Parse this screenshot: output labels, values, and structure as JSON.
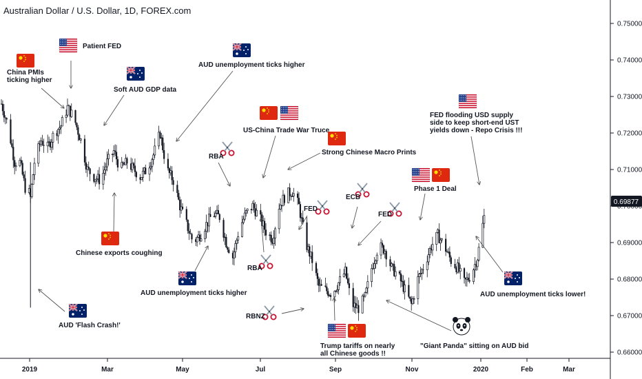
{
  "window": {
    "title": "Australian Dollar / U.S. Dollar, 1D, FOREX.com"
  },
  "colors": {
    "candle": "#131722",
    "arrow": "#555555",
    "axis_line": "#131722",
    "price_tag_bg": "#131722",
    "price_tag_text": "#ffffff"
  },
  "chart_data": {
    "type": "candlestick",
    "title": "Australian Dollar / U.S. Dollar, 1D, FOREX.com",
    "x_ticks": [
      "2019",
      "Mar",
      "May",
      "Jul",
      "Sep",
      "Nov",
      "2020",
      "Feb",
      "Mar"
    ],
    "y_ticks": [
      "0.75000",
      "0.74000",
      "0.73000",
      "0.72000",
      "0.71000",
      "0.70000",
      "0.69000",
      "0.68000",
      "0.67000",
      "0.66000"
    ],
    "ylim": [
      0.655,
      0.7575
    ],
    "last_price": "0.69877",
    "series": [
      {
        "name": "AUDUSD",
        "close_path_days": [
          0,
          5,
          10,
          14,
          18,
          20,
          22,
          25,
          30,
          35,
          40,
          45,
          50,
          55,
          60,
          65,
          70,
          75,
          80,
          85,
          90,
          95,
          100,
          105,
          110,
          115,
          120,
          125,
          130,
          135,
          140,
          145,
          150,
          155,
          160,
          165,
          170,
          175,
          180,
          185,
          190,
          195,
          200,
          205,
          210,
          215,
          220,
          225,
          230,
          235,
          240,
          245,
          250,
          255,
          260,
          265,
          270,
          275,
          280,
          285,
          290,
          295,
          300,
          305,
          310,
          315,
          320,
          325,
          330,
          335,
          340,
          345,
          350,
          355,
          360,
          365
        ],
        "close_path": [
          0.728,
          0.722,
          0.712,
          0.712,
          0.705,
          0.705,
          0.7022,
          0.712,
          0.718,
          0.716,
          0.72,
          0.722,
          0.727,
          0.724,
          0.718,
          0.71,
          0.708,
          0.707,
          0.712,
          0.715,
          0.71,
          0.712,
          0.71,
          0.708,
          0.71,
          0.714,
          0.72,
          0.71,
          0.707,
          0.7,
          0.695,
          0.69,
          0.692,
          0.695,
          0.698,
          0.697,
          0.69,
          0.686,
          0.694,
          0.698,
          0.7,
          0.697,
          0.693,
          0.691,
          0.7,
          0.703,
          0.704,
          0.7,
          0.69,
          0.685,
          0.678,
          0.677,
          0.676,
          0.679,
          0.682,
          0.673,
          0.672,
          0.675,
          0.683,
          0.689,
          0.688,
          0.683,
          0.681,
          0.677,
          0.673,
          0.68,
          0.684,
          0.689,
          0.692,
          0.689,
          0.685,
          0.683,
          0.679,
          0.681,
          0.686,
          0.697
        ]
      }
    ]
  },
  "annotations": [
    {
      "id": "china-pmis",
      "text_lines": [
        "China PMIs",
        "ticking higher"
      ],
      "flags": [
        "cn"
      ]
    },
    {
      "id": "patient-fed",
      "text_lines": [
        "Patient FED"
      ],
      "flags": [
        "us"
      ]
    },
    {
      "id": "soft-aud-gdp",
      "text_lines": [
        "Soft AUD GDP data"
      ],
      "flags": [
        "au"
      ]
    },
    {
      "id": "aud-unemp-higher-top",
      "text_lines": [
        "AUD unemployment ticks higher"
      ],
      "flags": [
        "au"
      ]
    },
    {
      "id": "rba-1",
      "text_lines": [
        "RBA"
      ],
      "flags": [
        "scissors"
      ]
    },
    {
      "id": "us-china-truce",
      "text_lines": [
        "US-China Trade War Truce"
      ],
      "flags": [
        "cn",
        "us"
      ]
    },
    {
      "id": "strong-chinese-macro",
      "text_lines": [
        "Strong Chinese Macro Prints"
      ],
      "flags": [
        "cn"
      ]
    },
    {
      "id": "fed-repo",
      "text_lines": [
        "FED flooding USD supply",
        "side to keep short-end UST",
        "yields down - Repo Crisis !!!"
      ],
      "flags": [
        "us"
      ]
    },
    {
      "id": "phase-1-deal",
      "text_lines": [
        "Phase 1 Deal"
      ],
      "flags": [
        "us",
        "cn"
      ]
    },
    {
      "id": "ecb",
      "text_lines": [
        "ECB"
      ],
      "flags": [
        "scissors"
      ]
    },
    {
      "id": "fed-cut-1",
      "text_lines": [
        "FED"
      ],
      "flags": [
        "scissors"
      ]
    },
    {
      "id": "fed-cut-2",
      "text_lines": [
        "FED"
      ],
      "flags": [
        "scissors"
      ]
    },
    {
      "id": "chinese-exports",
      "text_lines": [
        "Chinese exports coughing"
      ],
      "flags": [
        "cn"
      ]
    },
    {
      "id": "aud-unemp-higher-bottom",
      "text_lines": [
        "AUD unemployment ticks higher"
      ],
      "flags": [
        "au"
      ]
    },
    {
      "id": "rba-2",
      "text_lines": [
        "RBA"
      ],
      "flags": [
        "scissors"
      ]
    },
    {
      "id": "rbnz",
      "text_lines": [
        "RBNZ"
      ],
      "flags": [
        "scissors"
      ]
    },
    {
      "id": "trump-tariffs",
      "text_lines": [
        "Trump tariffs on nearly",
        "all Chinese goods !!"
      ],
      "flags": [
        "us",
        "cn"
      ]
    },
    {
      "id": "giant-panda",
      "text_lines": [
        "\"Giant Panda\" sitting on AUD bid"
      ],
      "flags": [
        "panda"
      ]
    },
    {
      "id": "aud-unemp-lower",
      "text_lines": [
        "AUD unemployment ticks lower!"
      ],
      "flags": [
        "au"
      ]
    },
    {
      "id": "aud-flash-crash",
      "text_lines": [
        "AUD 'Flash Crash!'"
      ],
      "flags": [
        "au"
      ]
    }
  ]
}
